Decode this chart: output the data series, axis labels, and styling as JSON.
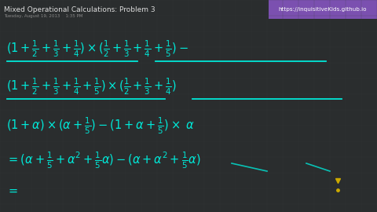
{
  "bg_color": "#2a2d2e",
  "title_text": "Mixed Operational Calculations: Problem 3",
  "subtitle_text": "Tuesday, August 19, 2013    1:35 PM",
  "title_color": "#dddddd",
  "subtitle_color": "#888888",
  "url_bg": "#7b50b0",
  "url_text": "https://inquisitiveKids.github.io",
  "url_color": "#ffffff",
  "math_color": "#00e8d8",
  "figsize": [
    4.8,
    2.7
  ],
  "dpi": 100,
  "grid_color": "#3a3e3f"
}
